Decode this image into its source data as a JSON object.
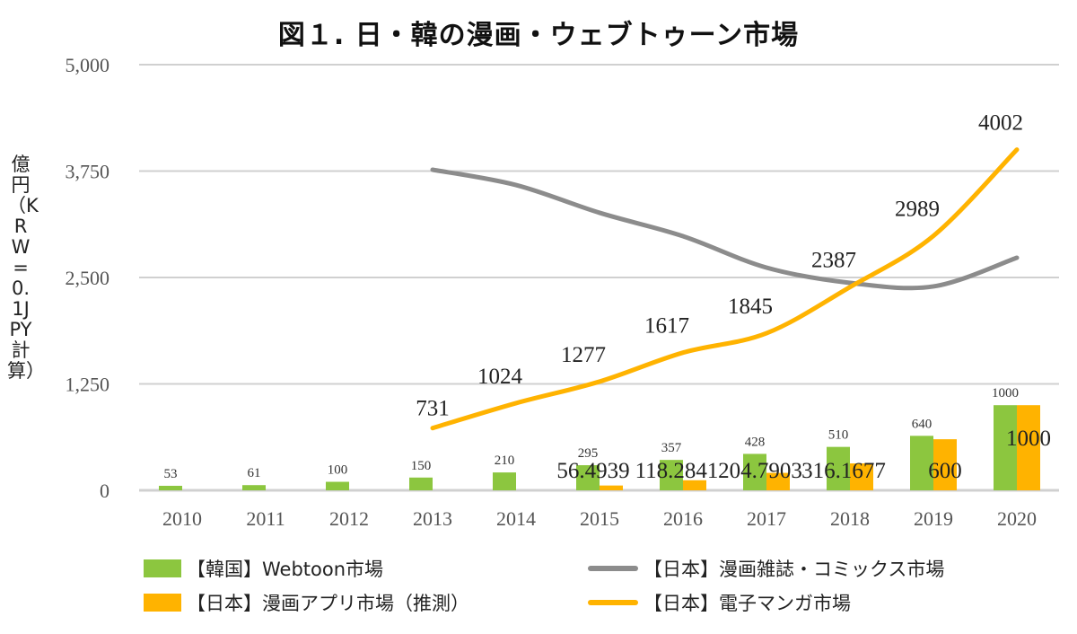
{
  "chart_data": {
    "type": "bar+line",
    "title": "図１. 日・韓の漫画・ウェブトゥーン市場",
    "ylabel": "億円（KRW=0.1JPY計算）",
    "ylim": [
      0,
      5000
    ],
    "yticks": [
      "0",
      "1,250",
      "2,500",
      "3,750",
      "5,000"
    ],
    "ytick_values": [
      0,
      1250,
      2500,
      3750,
      5000
    ],
    "grid": true,
    "legend_position": "bottom",
    "categories": [
      "2010",
      "2011",
      "2012",
      "2013",
      "2014",
      "2015",
      "2016",
      "2017",
      "2018",
      "2019",
      "2020"
    ],
    "series": [
      {
        "name": "【韓国】Webtoon市場",
        "type": "bar",
        "color": "#8cc63f",
        "values": [
          53,
          61,
          100,
          150,
          210,
          295,
          357,
          428,
          510,
          640,
          1000
        ],
        "labels": [
          "53",
          "61",
          "100",
          "150",
          "210",
          "295",
          "357",
          "428",
          "510",
          "640",
          "1000"
        ]
      },
      {
        "name": "【日本】漫画アプリ市場（推測）",
        "type": "bar",
        "color": "#ffb300",
        "values": [
          null,
          null,
          null,
          null,
          null,
          56.4939,
          118.2841,
          204.7903,
          316.1677,
          600,
          1000
        ],
        "labels": [
          "",
          "",
          "",
          "",
          "",
          "56.4939",
          "118.2841",
          "204.7903",
          "316.1677",
          "600",
          "1000"
        ]
      },
      {
        "name": "【日本】漫画雑誌・コミックス市場",
        "type": "line",
        "color": "#8c8c8c",
        "values": [
          null,
          null,
          null,
          3766,
          3586,
          3260,
          2985,
          2616,
          2437,
          2395,
          2732
        ]
      },
      {
        "name": "【日本】電子マンガ市場",
        "type": "line",
        "color": "#ffb300",
        "values": [
          null,
          null,
          null,
          731,
          1024,
          1277,
          1617,
          1845,
          2387,
          2989,
          4002
        ],
        "labels": [
          "",
          "",
          "",
          "731",
          "1024",
          "1277",
          "1617",
          "1845",
          "2387",
          "2989",
          "4002"
        ]
      }
    ]
  }
}
